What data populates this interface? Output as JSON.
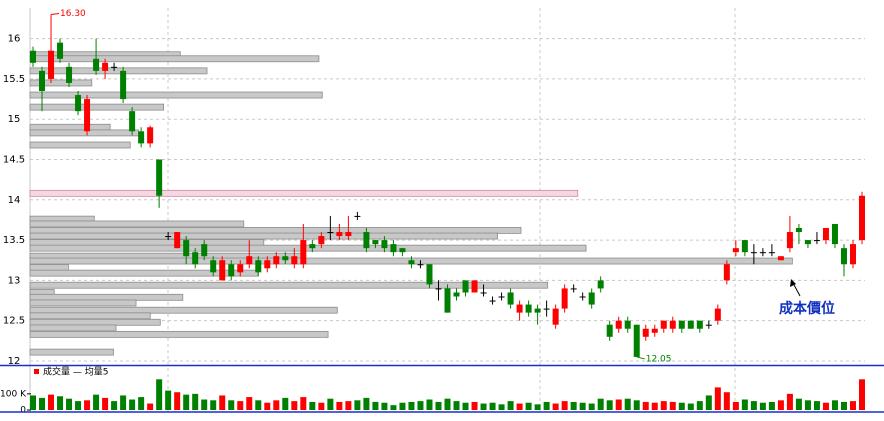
{
  "chart_data": {
    "type": "candlestick",
    "categories": [
      null,
      null,
      null,
      null,
      null,
      null,
      null,
      null,
      null,
      null,
      null,
      null,
      null,
      null,
      null,
      null,
      null,
      null,
      null,
      null,
      null,
      null,
      null,
      null,
      null,
      null,
      null,
      null,
      null,
      null,
      null,
      null,
      null,
      null,
      null,
      null,
      null,
      null,
      null,
      null,
      null,
      null,
      null,
      null,
      null,
      null,
      null,
      null,
      null,
      null,
      null,
      null,
      null,
      null,
      null,
      null,
      null,
      null,
      null,
      null,
      null,
      null,
      null,
      null,
      null,
      null,
      null,
      null,
      null,
      null,
      null,
      null,
      null,
      null,
      null,
      null,
      null,
      null,
      null,
      null,
      null,
      null,
      null,
      null,
      null,
      null,
      null,
      null,
      null,
      null,
      null,
      null,
      null
    ],
    "open": [
      15.85,
      15.6,
      15.5,
      15.95,
      15.65,
      15.3,
      14.85,
      15.75,
      15.6,
      15.65,
      15.6,
      15.1,
      14.85,
      14.7,
      14.5,
      13.55,
      13.4,
      13.5,
      13.35,
      13.45,
      13.25,
      13.0,
      13.2,
      13.1,
      13.2,
      13.25,
      13.15,
      13.2,
      13.3,
      13.2,
      13.2,
      13.45,
      13.45,
      13.6,
      13.55,
      13.55,
      13.8,
      13.6,
      13.5,
      13.5,
      13.45,
      13.4,
      13.25,
      13.2,
      13.2,
      12.9,
      12.9,
      12.85,
      13.0,
      12.85,
      12.85,
      12.75,
      12.8,
      12.85,
      12.6,
      12.7,
      12.65,
      12.65,
      12.45,
      12.65,
      12.9,
      12.8,
      12.85,
      13.0,
      12.45,
      12.4,
      12.5,
      12.45,
      12.3,
      12.35,
      12.4,
      12.4,
      12.5,
      12.5,
      12.5,
      12.45,
      12.5,
      13.0,
      13.35,
      13.5,
      13.35,
      13.35,
      13.35,
      13.25,
      13.4,
      13.65,
      13.5,
      13.5,
      13.5,
      13.7,
      13.4,
      13.2,
      13.5
    ],
    "high": [
      15.9,
      15.65,
      16.3,
      16.0,
      15.7,
      15.35,
      15.3,
      16.0,
      15.75,
      15.7,
      15.65,
      15.15,
      14.9,
      14.92,
      14.5,
      13.6,
      13.6,
      13.55,
      13.4,
      13.5,
      13.3,
      13.3,
      13.25,
      13.25,
      13.5,
      13.3,
      13.3,
      13.35,
      13.35,
      13.4,
      13.7,
      13.5,
      13.6,
      13.8,
      13.7,
      13.8,
      13.85,
      13.65,
      13.5,
      13.55,
      13.5,
      13.4,
      13.3,
      13.25,
      13.2,
      13.0,
      12.95,
      12.9,
      13.0,
      13.0,
      12.95,
      12.8,
      12.85,
      12.9,
      12.75,
      12.75,
      12.7,
      12.75,
      12.7,
      12.95,
      12.95,
      12.85,
      12.9,
      13.05,
      12.5,
      12.55,
      12.55,
      12.45,
      12.45,
      12.45,
      12.5,
      12.55,
      12.5,
      12.5,
      12.5,
      12.5,
      12.7,
      13.25,
      13.5,
      13.5,
      13.45,
      13.4,
      13.45,
      13.3,
      13.8,
      13.7,
      13.5,
      13.6,
      13.65,
      13.7,
      13.45,
      13.5,
      14.1
    ],
    "low": [
      15.65,
      15.1,
      15.45,
      15.7,
      15.4,
      15.05,
      14.8,
      15.55,
      15.5,
      15.6,
      15.2,
      14.8,
      14.65,
      14.65,
      13.9,
      13.5,
      13.4,
      13.2,
      13.15,
      13.25,
      13.05,
      13.0,
      13.0,
      13.05,
      13.15,
      13.05,
      13.1,
      13.15,
      13.2,
      13.15,
      13.15,
      13.35,
      13.4,
      13.5,
      13.5,
      13.5,
      13.75,
      13.35,
      13.4,
      13.35,
      13.3,
      13.3,
      13.15,
      13.15,
      12.9,
      12.75,
      12.6,
      12.75,
      12.8,
      12.85,
      12.8,
      12.7,
      12.75,
      12.65,
      12.5,
      12.55,
      12.45,
      12.55,
      12.4,
      12.6,
      12.85,
      12.75,
      12.65,
      12.85,
      12.25,
      12.35,
      12.35,
      12.05,
      12.25,
      12.3,
      12.35,
      12.35,
      12.35,
      12.4,
      12.35,
      12.4,
      12.45,
      12.95,
      13.3,
      13.3,
      13.2,
      13.3,
      13.3,
      13.25,
      13.35,
      13.45,
      13.4,
      13.45,
      13.45,
      13.4,
      13.05,
      13.15,
      13.45
    ],
    "close": [
      15.7,
      15.35,
      15.85,
      15.75,
      15.45,
      15.1,
      15.25,
      15.6,
      15.7,
      15.65,
      15.25,
      14.85,
      14.7,
      14.9,
      14.05,
      13.55,
      13.6,
      13.3,
      13.2,
      13.3,
      13.1,
      13.25,
      13.05,
      13.2,
      13.3,
      13.1,
      13.25,
      13.3,
      13.25,
      13.3,
      13.5,
      13.4,
      13.55,
      13.6,
      13.6,
      13.6,
      13.8,
      13.4,
      13.45,
      13.4,
      13.35,
      13.35,
      13.2,
      13.2,
      12.95,
      12.9,
      12.6,
      12.8,
      12.85,
      13.0,
      12.85,
      12.75,
      12.8,
      12.7,
      12.7,
      12.6,
      12.6,
      12.65,
      12.65,
      12.9,
      12.9,
      12.8,
      12.7,
      12.9,
      12.3,
      12.5,
      12.4,
      12.05,
      12.4,
      12.4,
      12.5,
      12.5,
      12.4,
      12.4,
      12.4,
      12.45,
      12.65,
      13.2,
      13.4,
      13.35,
      13.35,
      13.35,
      13.35,
      13.3,
      13.6,
      13.6,
      13.45,
      13.5,
      13.65,
      13.45,
      13.2,
      13.45,
      14.05
    ],
    "up_color": "#ff0000",
    "down_color": "#008000",
    "ylim": [
      11.95,
      16.38
    ],
    "yticks": [
      16,
      15.5,
      15,
      14.5,
      14,
      13.5,
      13,
      12.5,
      12
    ],
    "grid": true,
    "volume_profile": {
      "color": "#c8c8c8",
      "xlim": [
        0,
        100
      ],
      "levels": [
        {
          "price": 15.8,
          "value": 18
        },
        {
          "price": 15.75,
          "value": 34.6
        },
        {
          "price": 15.6,
          "value": 21.2
        },
        {
          "price": 15.45,
          "value": 7.4
        },
        {
          "price": 15.3,
          "value": 35
        },
        {
          "price": 15.15,
          "value": 16
        },
        {
          "price": 14.9,
          "value": 9.6
        },
        {
          "price": 14.83,
          "value": 13
        },
        {
          "price": 14.68,
          "value": 12
        },
        {
          "price": 14.08,
          "value": 65.6,
          "color": "#f6d6e2"
        },
        {
          "price": 13.76,
          "value": 7.7
        },
        {
          "price": 13.7,
          "value": 25.6
        },
        {
          "price": 13.62,
          "value": 58.8
        },
        {
          "price": 13.55,
          "value": 56
        },
        {
          "price": 13.47,
          "value": 28
        },
        {
          "price": 13.4,
          "value": 66.6
        },
        {
          "price": 13.3,
          "value": 32.7
        },
        {
          "price": 13.24,
          "value": 91.3
        },
        {
          "price": 13.16,
          "value": 4.6
        },
        {
          "price": 13.09,
          "value": 27.3
        },
        {
          "price": 12.94,
          "value": 62
        },
        {
          "price": 12.85,
          "value": 2.9
        },
        {
          "price": 12.79,
          "value": 18.3
        },
        {
          "price": 12.72,
          "value": 12.7
        },
        {
          "price": 12.63,
          "value": 36.8
        },
        {
          "price": 12.56,
          "value": 14.4
        },
        {
          "price": 12.48,
          "value": 15.6
        },
        {
          "price": 12.41,
          "value": 10.3
        },
        {
          "price": 12.33,
          "value": 35.7
        },
        {
          "price": 12.11,
          "value": 10
        }
      ]
    },
    "annotations": [
      {
        "value": 16.3,
        "label": "16.30",
        "color": "#ff0000"
      },
      {
        "value": 12.05,
        "label": "12.05",
        "color": "#008000"
      }
    ],
    "cost_label": "成本價位",
    "volume": {
      "legend": "成交量 — 均量5",
      "values": [
        90000,
        75000,
        95000,
        85000,
        70000,
        55000,
        60000,
        95000,
        75000,
        55000,
        90000,
        65000,
        80000,
        40000,
        190000,
        120000,
        110000,
        95000,
        100000,
        65000,
        60000,
        90000,
        60000,
        55000,
        80000,
        60000,
        45000,
        60000,
        75000,
        55000,
        80000,
        50000,
        45000,
        70000,
        50000,
        55000,
        60000,
        75000,
        50000,
        45000,
        30000,
        45000,
        50000,
        55000,
        65000,
        50000,
        70000,
        55000,
        45000,
        50000,
        40000,
        45000,
        35000,
        55000,
        40000,
        45000,
        35000,
        50000,
        40000,
        55000,
        50000,
        45000,
        40000,
        70000,
        60000,
        65000,
        70000,
        60000,
        50000,
        45000,
        55000,
        50000,
        45000,
        40000,
        55000,
        90000,
        140000,
        110000,
        50000,
        65000,
        55000,
        45000,
        50000,
        60000,
        100000,
        70000,
        60000,
        55000,
        45000,
        60000,
        50000,
        55000,
        190000
      ],
      "ylim": [
        0,
        260000
      ],
      "yticks": [
        0,
        {
          "value": 100000,
          "label": "100 K"
        }
      ]
    }
  }
}
